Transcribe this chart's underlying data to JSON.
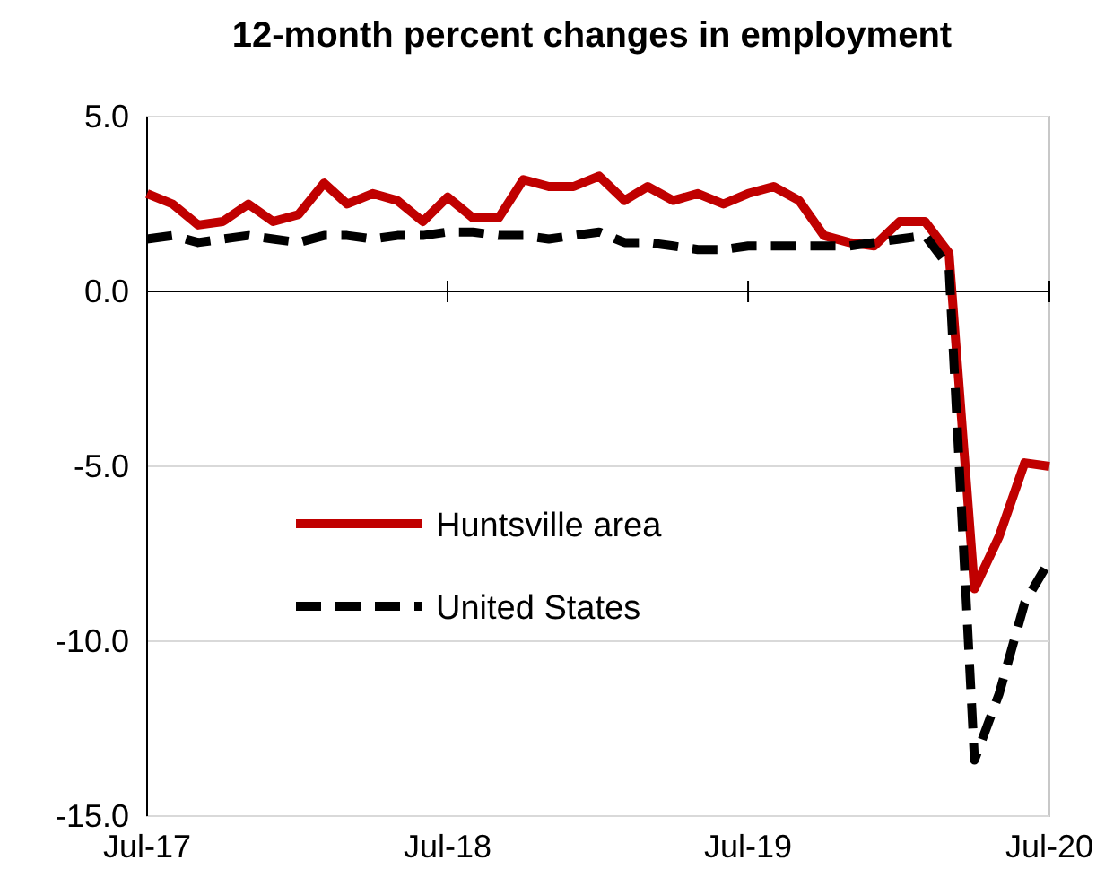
{
  "chart_data": {
    "type": "line",
    "title": "12-month percent changes in employment",
    "x": [
      "2017-07",
      "2017-08",
      "2017-09",
      "2017-10",
      "2017-11",
      "2017-12",
      "2018-01",
      "2018-02",
      "2018-03",
      "2018-04",
      "2018-05",
      "2018-06",
      "2018-07",
      "2018-08",
      "2018-09",
      "2018-10",
      "2018-11",
      "2018-12",
      "2019-01",
      "2019-02",
      "2019-03",
      "2019-04",
      "2019-05",
      "2019-06",
      "2019-07",
      "2019-08",
      "2019-09",
      "2019-10",
      "2019-11",
      "2019-12",
      "2020-01",
      "2020-02",
      "2020-03",
      "2020-04",
      "2020-05",
      "2020-06",
      "2020-07"
    ],
    "series": [
      {
        "name": "Huntsville area",
        "color": "#c00000",
        "line_style": "solid",
        "values": [
          2.8,
          2.5,
          1.9,
          2.0,
          2.5,
          2.0,
          2.2,
          3.1,
          2.5,
          2.8,
          2.6,
          2.0,
          2.7,
          2.1,
          2.1,
          3.2,
          3.0,
          3.0,
          3.3,
          2.6,
          3.0,
          2.6,
          2.8,
          2.5,
          2.8,
          3.0,
          2.6,
          1.6,
          1.4,
          1.3,
          2.0,
          2.0,
          1.1,
          -8.5,
          -7.0,
          -4.9,
          -5.0
        ]
      },
      {
        "name": "United States",
        "color": "#000000",
        "line_style": "dashed",
        "values": [
          1.5,
          1.6,
          1.4,
          1.5,
          1.6,
          1.5,
          1.4,
          1.6,
          1.6,
          1.5,
          1.6,
          1.6,
          1.7,
          1.7,
          1.6,
          1.6,
          1.5,
          1.6,
          1.7,
          1.4,
          1.4,
          1.3,
          1.2,
          1.2,
          1.3,
          1.3,
          1.3,
          1.3,
          1.3,
          1.4,
          1.5,
          1.6,
          0.7,
          -13.4,
          -11.5,
          -8.9,
          -7.7
        ]
      }
    ],
    "xlim": [
      "2017-07",
      "2020-07"
    ],
    "xticks": [
      {
        "value": "2017-07",
        "label": "Jul-17"
      },
      {
        "value": "2018-07",
        "label": "Jul-18"
      },
      {
        "value": "2019-07",
        "label": "Jul-19"
      },
      {
        "value": "2020-07",
        "label": "Jul-20"
      }
    ],
    "ylim": [
      -15,
      5
    ],
    "yticks": [
      {
        "value": -15,
        "label": "-15.0"
      },
      {
        "value": -10,
        "label": "-10.0"
      },
      {
        "value": -5,
        "label": "-5.0"
      },
      {
        "value": 0,
        "label": "0.0"
      },
      {
        "value": 5,
        "label": "5.0"
      }
    ],
    "grid": "y",
    "legend": "center",
    "marker": "none"
  }
}
